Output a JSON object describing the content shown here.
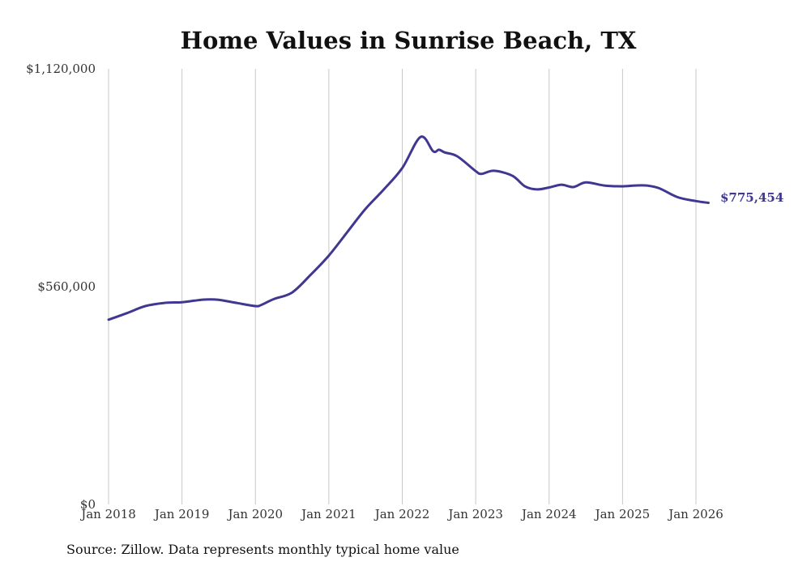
{
  "chart_data": {
    "type": "line",
    "title": "Home Values in Sunrise Beach, TX",
    "xlabel": "",
    "ylabel": "",
    "source": "Source: Zillow. Data represents monthly typical home value",
    "ylim": [
      0,
      1120000
    ],
    "y_ticks": [
      {
        "value": 0,
        "label": "$0"
      },
      {
        "value": 560000,
        "label": "$560,000"
      },
      {
        "value": 1120000,
        "label": "$1,120,000"
      }
    ],
    "x_range": [
      2018.0,
      2026.1667
    ],
    "x_ticks": [
      {
        "value": 2018,
        "label": "Jan 2018"
      },
      {
        "value": 2019,
        "label": "Jan 2019"
      },
      {
        "value": 2020,
        "label": "Jan 2020"
      },
      {
        "value": 2021,
        "label": "Jan 2021"
      },
      {
        "value": 2022,
        "label": "Jan 2022"
      },
      {
        "value": 2023,
        "label": "Jan 2023"
      },
      {
        "value": 2024,
        "label": "Jan 2024"
      },
      {
        "value": 2025,
        "label": "Jan 2025"
      },
      {
        "value": 2026,
        "label": "Jan 2026"
      }
    ],
    "grid": {
      "vertical": true,
      "horizontal": false
    },
    "series": [
      {
        "name": "Typical home value",
        "color": "#3f3790",
        "end_label": "$775,454",
        "x": [
          2018.0,
          2018.25,
          2018.5,
          2018.75,
          2019.0,
          2019.17,
          2019.33,
          2019.5,
          2019.75,
          2020.0,
          2020.08,
          2020.25,
          2020.5,
          2020.75,
          2021.0,
          2021.25,
          2021.5,
          2021.75,
          2022.0,
          2022.25,
          2022.42,
          2022.5,
          2022.58,
          2022.75,
          2023.0,
          2023.08,
          2023.25,
          2023.5,
          2023.67,
          2023.83,
          2024.0,
          2024.17,
          2024.33,
          2024.5,
          2024.75,
          2025.0,
          2025.17,
          2025.33,
          2025.5,
          2025.75,
          2026.0,
          2026.17
        ],
        "values": [
          475000,
          492000,
          510000,
          518000,
          520000,
          524000,
          527000,
          526000,
          518000,
          510000,
          513000,
          528000,
          545000,
          590000,
          640000,
          700000,
          760000,
          810000,
          865000,
          945000,
          908000,
          912000,
          905000,
          895000,
          857000,
          850000,
          858000,
          845000,
          818000,
          810000,
          815000,
          822000,
          816000,
          828000,
          820000,
          818000,
          820000,
          820000,
          813000,
          790000,
          780000,
          775454
        ]
      }
    ]
  }
}
